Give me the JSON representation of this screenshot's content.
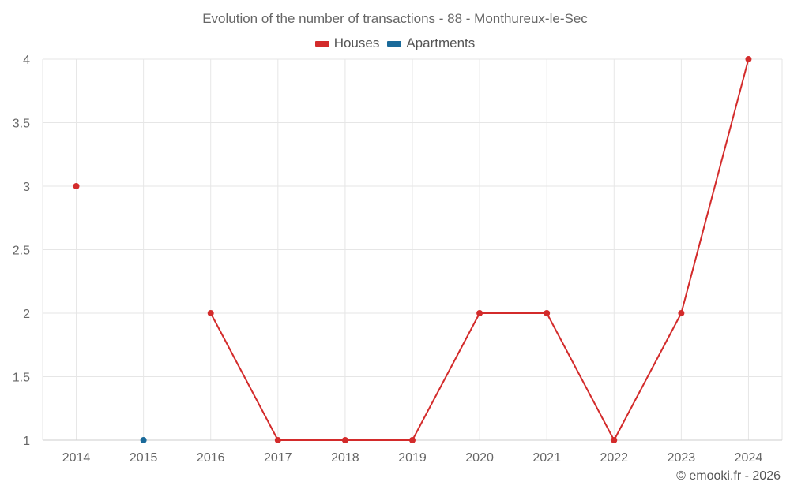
{
  "chart_data": {
    "type": "line",
    "title": "Evolution of the number of transactions - 88 - Monthureux-le-Sec",
    "x": [
      "2014",
      "2015",
      "2016",
      "2017",
      "2018",
      "2019",
      "2020",
      "2021",
      "2022",
      "2023",
      "2024"
    ],
    "series": [
      {
        "name": "Houses",
        "color": "#d32b2b",
        "values": [
          3,
          null,
          2,
          1,
          1,
          1,
          2,
          2,
          1,
          2,
          4
        ]
      },
      {
        "name": "Apartments",
        "color": "#1a6a9a",
        "values": [
          null,
          1,
          null,
          null,
          null,
          null,
          null,
          null,
          null,
          null,
          null
        ]
      }
    ],
    "ylim": [
      1,
      4
    ],
    "yticks": [
      "1",
      "1.5",
      "2",
      "2.5",
      "3",
      "3.5",
      "4"
    ],
    "ytick_values": [
      1,
      1.5,
      2,
      2.5,
      3,
      3.5,
      4
    ],
    "grid": true,
    "legend_position": "top-center"
  },
  "credit": "© emooki.fr - 2026"
}
